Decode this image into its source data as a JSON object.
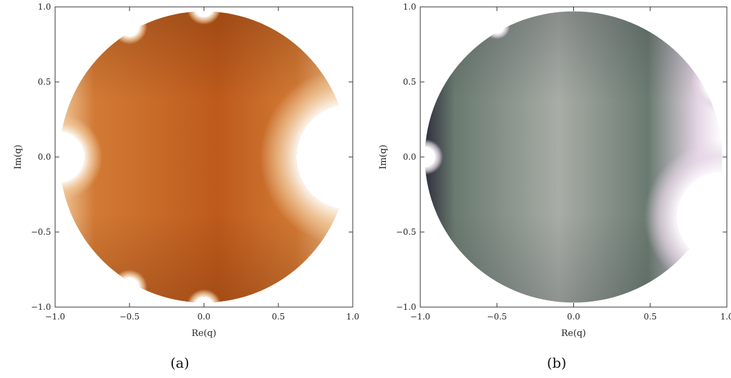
{
  "chart_data": [
    {
      "type": "heatmap",
      "caption": "(a)",
      "xlabel": "Re(q)",
      "ylabel": "Im(q)",
      "xlim": [
        -1.0,
        1.0
      ],
      "ylim": [
        -1.0,
        1.0
      ],
      "x_ticks": [
        "-1.0",
        "-0.5",
        "0.0",
        "0.5",
        "1.0"
      ],
      "y_ticks": [
        "-1.0",
        "-0.5",
        "0.0",
        "0.5",
        "1.0"
      ],
      "colormap": [
        "#ffffff",
        "#f0c89a",
        "#d27a35",
        "#bd5a1c",
        "#6a2a08"
      ],
      "domain_radius": 0.97,
      "excluded_regions": [
        {
          "cx": -0.97,
          "cy": 0.0,
          "r": 0.17
        },
        {
          "cx": 0.97,
          "cy": 0.0,
          "r": 0.35
        },
        {
          "cx": 0.0,
          "cy": 1.0,
          "r": 0.07
        },
        {
          "cx": 0.0,
          "cy": -1.0,
          "r": 0.07
        },
        {
          "cx": -0.5,
          "cy": 0.87,
          "r": 0.07
        },
        {
          "cx": -0.5,
          "cy": -0.87,
          "r": 0.07
        }
      ]
    },
    {
      "type": "heatmap",
      "caption": "(b)",
      "xlabel": "Re(q)",
      "ylabel": "Im(q)",
      "xlim": [
        -1.0,
        1.0
      ],
      "ylim": [
        -1.0,
        1.0
      ],
      "x_ticks": [
        "-1.0",
        "-0.5",
        "0.0",
        "0.5",
        "1.0"
      ],
      "y_ticks": [
        "-1.0",
        "-0.5",
        "0.0",
        "0.5",
        "1.0"
      ],
      "colormap": [
        "#ffffff",
        "#e6d6e6",
        "#a8ada6",
        "#6a7a70",
        "#2e2f3c"
      ],
      "domain_radius": 0.97,
      "excluded_regions": [
        {
          "cx": -0.97,
          "cy": 0.0,
          "r": 0.07
        },
        {
          "cx": 0.97,
          "cy": 0.5,
          "r": 0.12
        },
        {
          "cx": 0.97,
          "cy": -0.4,
          "r": 0.3
        },
        {
          "cx": -0.5,
          "cy": 0.87,
          "r": 0.05
        }
      ]
    }
  ]
}
